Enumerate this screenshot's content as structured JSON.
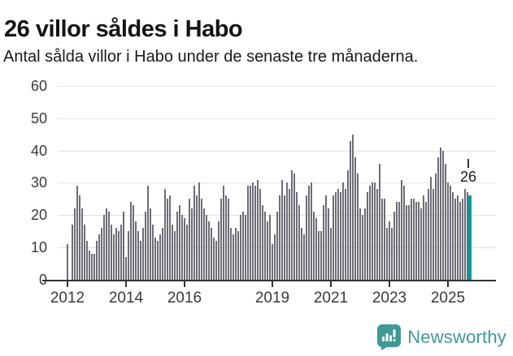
{
  "header": {
    "title": "26 villor såldes i Habo",
    "subtitle": "Antal sålda villor i Habo under de senaste tre månaderna."
  },
  "chart_data": {
    "type": "bar",
    "title": "26 villor såldes i Habo",
    "xlabel": "",
    "ylabel": "",
    "x_unit": "month",
    "x_start": "2012-01",
    "x_end": "2025-10",
    "ylim": [
      0,
      60
    ],
    "grid": true,
    "y_ticks": [
      0,
      10,
      20,
      30,
      40,
      50,
      60
    ],
    "x_ticks": [
      {
        "label": "2012",
        "month_index": 0
      },
      {
        "label": "2014",
        "month_index": 24
      },
      {
        "label": "2016",
        "month_index": 48
      },
      {
        "label": "2019",
        "month_index": 84
      },
      {
        "label": "2021",
        "month_index": 108
      },
      {
        "label": "2023",
        "month_index": 132
      },
      {
        "label": "2025",
        "month_index": 156
      }
    ],
    "values": [
      11,
      null,
      17,
      22,
      29,
      26,
      22,
      17,
      12,
      9,
      8,
      8,
      12,
      14,
      16,
      20,
      22,
      21,
      17,
      14,
      16,
      15,
      17,
      21,
      7,
      15,
      24,
      23,
      18,
      15,
      12,
      16,
      21,
      29,
      22,
      17,
      13,
      12,
      14,
      16,
      28,
      25,
      26,
      17,
      15,
      21,
      23,
      20,
      19,
      17,
      25,
      22,
      29,
      26,
      30,
      25,
      22,
      20,
      18,
      16,
      13,
      12,
      18,
      25,
      29,
      26,
      25,
      16,
      14,
      16,
      15,
      20,
      21,
      20,
      29,
      29,
      30,
      29,
      31,
      28,
      23,
      21,
      18,
      20,
      11,
      14,
      21,
      26,
      31,
      26,
      30,
      28,
      34,
      33,
      27,
      23,
      16,
      14,
      26,
      29,
      30,
      21,
      19,
      15,
      15,
      23,
      26,
      22,
      16,
      26,
      27,
      28,
      27,
      30,
      28,
      34,
      43,
      45,
      38,
      33,
      22,
      20,
      22,
      27,
      29,
      30,
      30,
      28,
      36,
      25,
      25,
      16,
      18,
      16,
      21,
      24,
      24,
      31,
      29,
      23,
      23,
      25,
      25,
      24,
      24,
      22,
      26,
      24,
      28,
      32,
      28,
      33,
      38,
      41,
      40,
      36,
      30,
      29,
      27,
      25,
      26,
      24,
      25,
      28,
      27,
      26
    ],
    "bar_color": "#6e6c75",
    "highlight_color": "#009a9b",
    "highlight_index": 165,
    "annotation": {
      "text": "26",
      "index": 165
    }
  },
  "footer": {
    "brand": "Newsworthy",
    "brand_color": "#3e9a97",
    "logo_icon": "bar-chart-speech-bubble-icon"
  }
}
